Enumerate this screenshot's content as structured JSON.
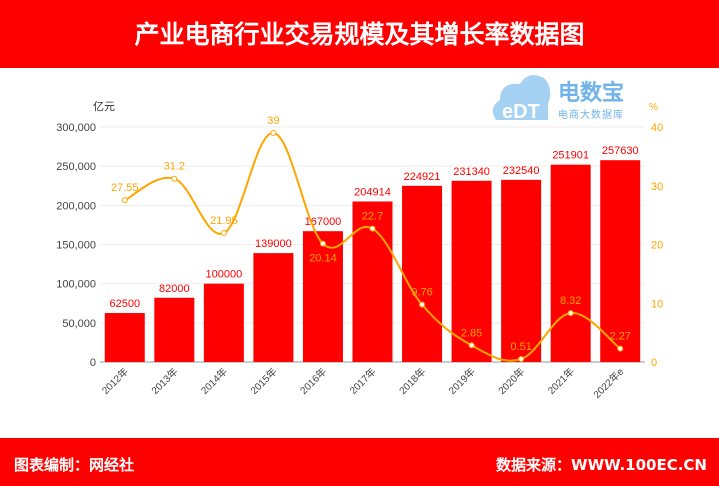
{
  "header": {
    "title": "产业电商行业交易规模及其增长率数据图"
  },
  "footer": {
    "left": "图表编制：网经社",
    "right": "数据来源：WWW.100EC.CN"
  },
  "logo": {
    "text": "电数宝",
    "sub": "电商大数据库",
    "mark": "eDT"
  },
  "chart_data": {
    "type": "bar+line",
    "categories": [
      "2012年",
      "2013年",
      "2014年",
      "2015年",
      "2016年",
      "2017年",
      "2018年",
      "2019年",
      "2020年",
      "2021年",
      "2022年e"
    ],
    "series": [
      {
        "type": "bar",
        "axis": "left",
        "color": "#ff0000",
        "values": [
          62500,
          82000,
          100000,
          139000,
          167000,
          204914,
          224921,
          231340,
          232540,
          251901,
          257630
        ]
      },
      {
        "type": "line",
        "axis": "right",
        "color": "#ffa500",
        "smooth": true,
        "values": [
          27.55,
          31.2,
          21.95,
          39,
          20.14,
          22.7,
          9.76,
          2.85,
          0.51,
          8.32,
          2.27
        ]
      }
    ],
    "ylabel": "亿元",
    "ylabel_right": "%",
    "ylim": [
      0,
      300000
    ],
    "yticks": [
      0,
      50000,
      100000,
      150000,
      200000,
      250000,
      300000
    ],
    "ylim_right": [
      0,
      40
    ],
    "yticks_right": [
      0,
      10,
      20,
      30,
      40
    ],
    "grid": true
  }
}
